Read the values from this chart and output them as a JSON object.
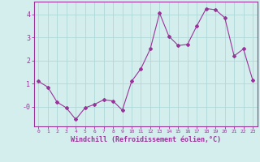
{
  "x": [
    0,
    1,
    2,
    3,
    4,
    5,
    6,
    7,
    8,
    9,
    10,
    11,
    12,
    13,
    14,
    15,
    16,
    17,
    18,
    19,
    20,
    21,
    22,
    23
  ],
  "y": [
    1.1,
    0.85,
    0.2,
    -0.05,
    -0.55,
    -0.05,
    0.1,
    0.3,
    0.25,
    -0.15,
    1.1,
    1.65,
    2.5,
    4.05,
    3.05,
    2.65,
    2.7,
    3.5,
    4.25,
    4.2,
    3.85,
    2.2,
    2.5,
    1.15
  ],
  "line_color": "#993399",
  "marker": "D",
  "marker_size": 2,
  "bg_color": "#d4eeee",
  "grid_color": "#b0d8d8",
  "xlabel": "Windchill (Refroidissement éolien,°C)",
  "xlabel_color": "#993399",
  "tick_color": "#993399",
  "ylim": [
    -0.85,
    4.55
  ],
  "xlim": [
    -0.5,
    23.5
  ],
  "yticks": [
    4,
    3,
    2,
    1,
    0
  ],
  "ytick_labels": [
    "4",
    "3",
    "2",
    "1",
    "-0"
  ],
  "xticks": [
    0,
    1,
    2,
    3,
    4,
    5,
    6,
    7,
    8,
    9,
    10,
    11,
    12,
    13,
    14,
    15,
    16,
    17,
    18,
    19,
    20,
    21,
    22,
    23
  ],
  "spine_color": "#993399"
}
